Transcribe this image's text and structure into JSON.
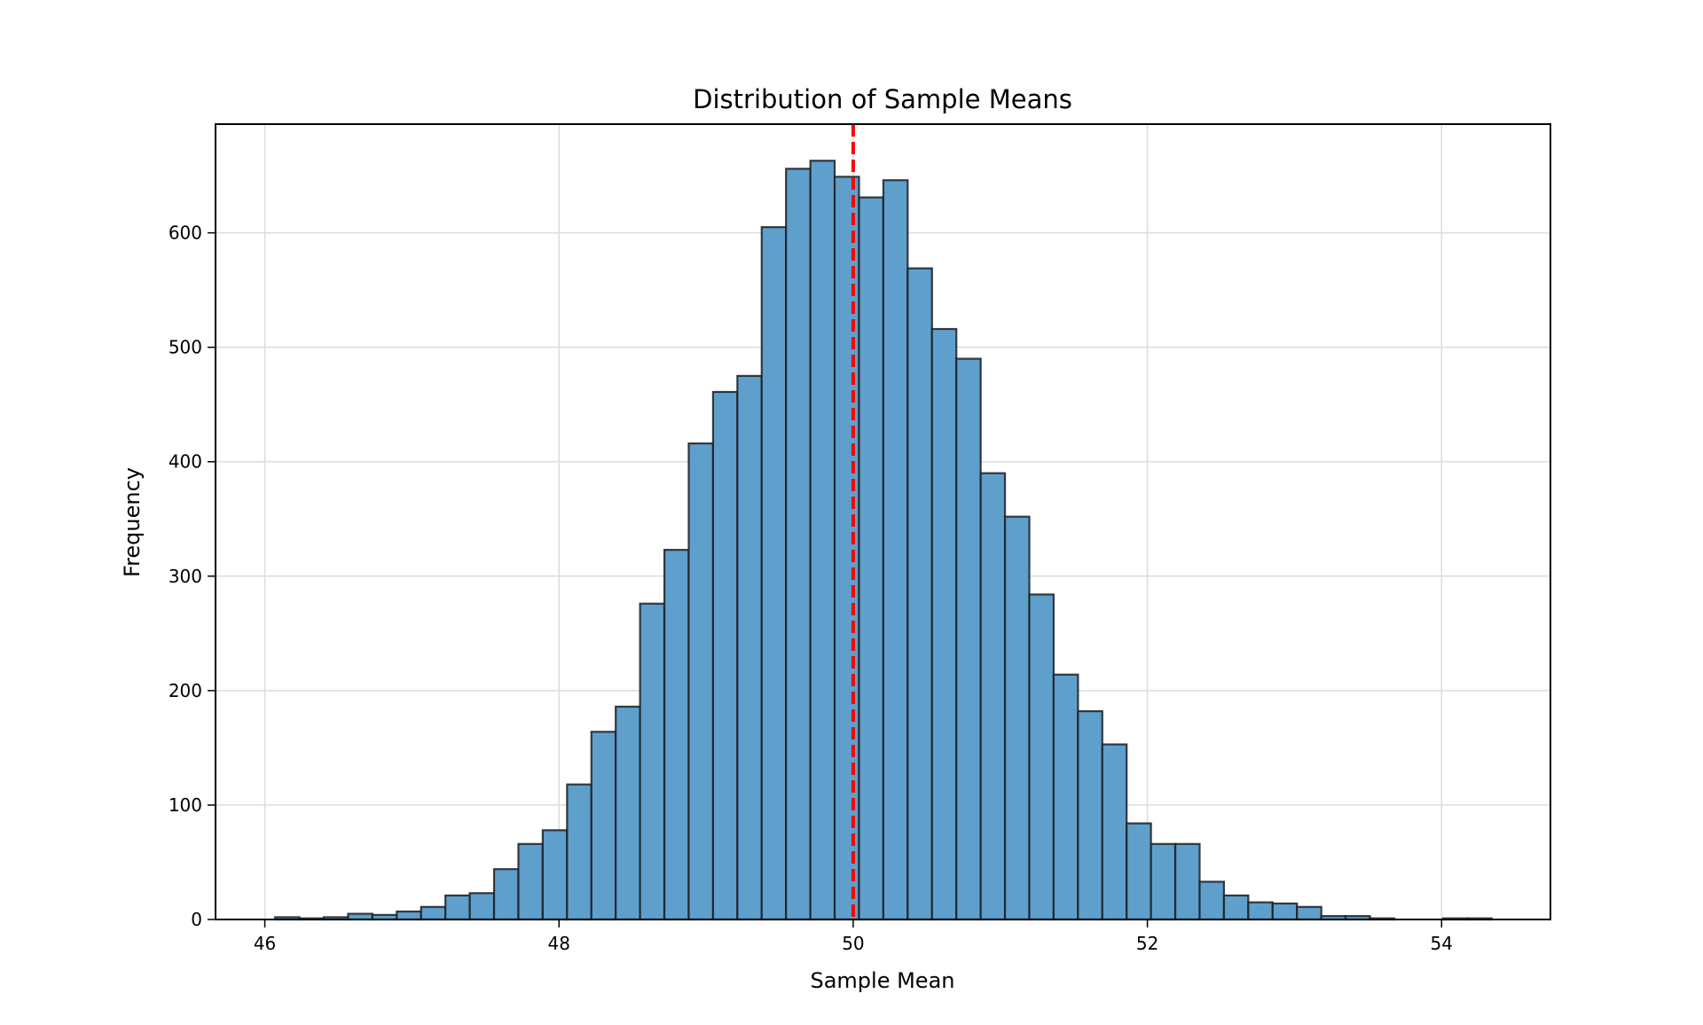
{
  "chart_data": {
    "type": "bar",
    "subtype": "histogram",
    "title": "Distribution of Sample Means",
    "xlabel": "Sample Mean",
    "ylabel": "Frequency",
    "xlim": [
      45.665,
      54.74
    ],
    "ylim": [
      0,
      695
    ],
    "xticks": [
      46,
      48,
      50,
      52,
      54
    ],
    "xtick_labels": [
      "46",
      "48",
      "50",
      "52",
      "54"
    ],
    "yticks": [
      0,
      100,
      200,
      300,
      400,
      500,
      600
    ],
    "ytick_labels": [
      "0",
      "100",
      "200",
      "300",
      "400",
      "500",
      "600"
    ],
    "grid": true,
    "bin_start": 46.07,
    "bin_width": 0.1654,
    "values": [
      2,
      1,
      2,
      5,
      4,
      7,
      11,
      21,
      23,
      44,
      66,
      78,
      118,
      164,
      186,
      276,
      323,
      416,
      461,
      475,
      605,
      656,
      663,
      649,
      631,
      646,
      569,
      516,
      490,
      390,
      352,
      284,
      214,
      182,
      153,
      84,
      66,
      66,
      33,
      21,
      15,
      14,
      11,
      3,
      3,
      1,
      0,
      0,
      1,
      1
    ],
    "bar_color": "#5f9fcb",
    "edge_color": "#1a1f24",
    "reference_line": {
      "x": 50.0,
      "color": "#ff0000",
      "style": "dashed"
    }
  }
}
